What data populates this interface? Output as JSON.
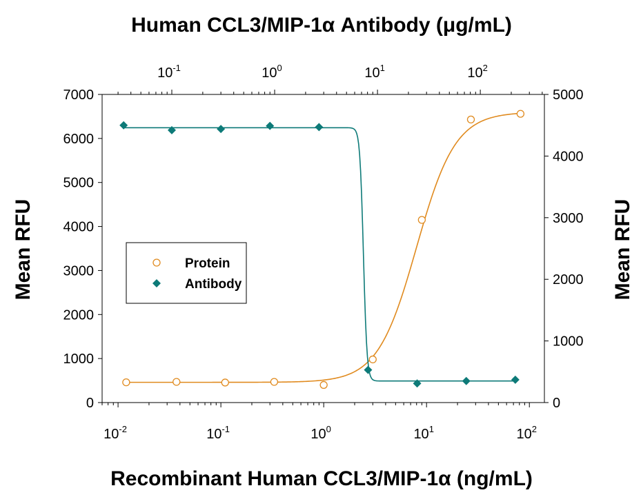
{
  "chart_data": {
    "type": "scatter",
    "title": "Human CCL3/MIP-1α Antibody (μg/mL)",
    "xlabel": "Recombinant Human CCL3/MIP-1α (ng/mL)",
    "ylabel_left": "Mean RFU",
    "ylabel_right": "Mean RFU",
    "x_scale": "log",
    "xlim": [
      0.007,
      140
    ],
    "ylim_left": [
      0,
      7000
    ],
    "ylim_right": [
      0,
      5000
    ],
    "x_ticks": [
      {
        "base": "10",
        "exp": "-2",
        "value": 0.01
      },
      {
        "base": "10",
        "exp": "-1",
        "value": 0.1
      },
      {
        "base": "10",
        "exp": "0",
        "value": 1
      },
      {
        "base": "10",
        "exp": "1",
        "value": 10
      },
      {
        "base": "10",
        "exp": "2",
        "value": 100
      }
    ],
    "x2_ticks": [
      {
        "base": "10",
        "exp": "-1",
        "value": 0.1
      },
      {
        "base": "10",
        "exp": "0",
        "value": 1
      },
      {
        "base": "10",
        "exp": "1",
        "value": 10
      },
      {
        "base": "10",
        "exp": "2",
        "value": 100
      }
    ],
    "x2lim": [
      0.021,
      420
    ],
    "y_ticks_left": [
      "0",
      "1000",
      "2000",
      "3000",
      "4000",
      "5000",
      "6000",
      "7000"
    ],
    "y_ticks_right": [
      "0",
      "1000",
      "2000",
      "3000",
      "4000",
      "5000"
    ],
    "legend_position": "center-left",
    "series": [
      {
        "name": "Protein",
        "axis": "bottom-left",
        "marker": "open-circle",
        "color": "#E08A1E",
        "points": [
          {
            "x": 0.012,
            "y": 460
          },
          {
            "x": 0.037,
            "y": 470
          },
          {
            "x": 0.11,
            "y": 455
          },
          {
            "x": 0.33,
            "y": 470
          },
          {
            "x": 1.0,
            "y": 400
          },
          {
            "x": 3.0,
            "y": 980
          },
          {
            "x": 9.0,
            "y": 4150
          },
          {
            "x": 27,
            "y": 6430
          },
          {
            "x": 82,
            "y": 6560
          }
        ],
        "fit": {
          "bottom": 460,
          "top": 6600,
          "ec50": 8.0,
          "hill": 2.3
        }
      },
      {
        "name": "Antibody",
        "axis": "top-right",
        "marker": "filled-diamond",
        "color": "#0D7A78",
        "points": [
          {
            "x": 0.034,
            "y": 4500
          },
          {
            "x": 0.1,
            "y": 4420
          },
          {
            "x": 0.3,
            "y": 4440
          },
          {
            "x": 0.9,
            "y": 4490
          },
          {
            "x": 2.7,
            "y": 4470
          },
          {
            "x": 8.1,
            "y": 530
          },
          {
            "x": 24.3,
            "y": 310
          },
          {
            "x": 73,
            "y": 350
          },
          {
            "x": 219,
            "y": 370
          }
        ],
        "fit": {
          "top": 4460,
          "bottom": 350,
          "ic50": 7.3,
          "hill": -25
        }
      }
    ]
  }
}
